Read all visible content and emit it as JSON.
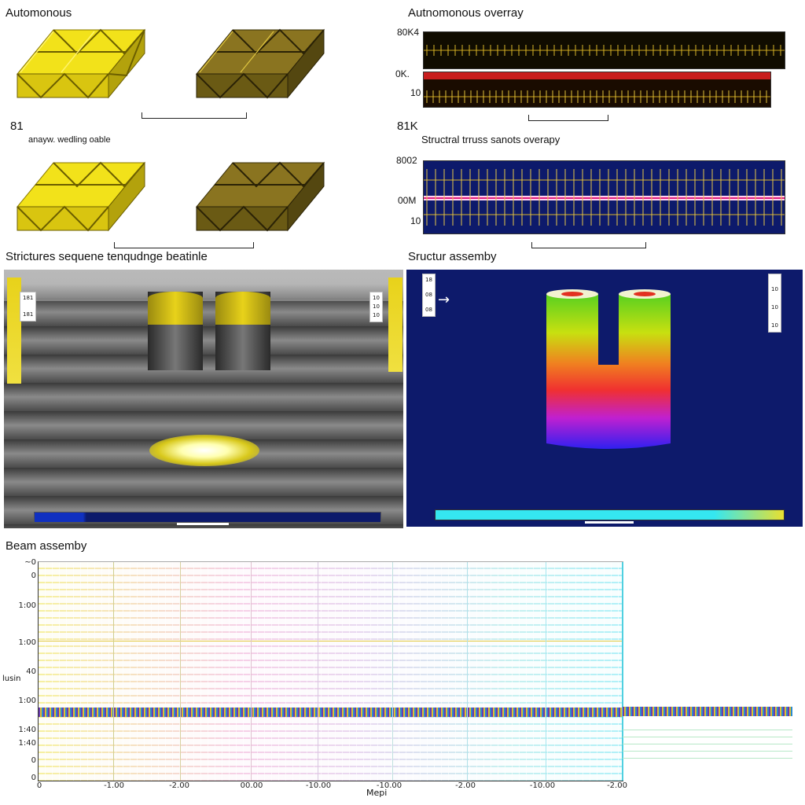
{
  "top_left": {
    "title": "Automonous",
    "side_label": "81",
    "caption": "anayw. wedling oable"
  },
  "top_right": {
    "title": "Autnomonous overray",
    "strip1_labels": [
      "80K4",
      "0K.",
      "10"
    ],
    "section_label": "81K",
    "subtitle": "Structral trruss sanots overapy",
    "strip2_labels": [
      "8002",
      "00M",
      "10"
    ]
  },
  "mid_left": {
    "title": "Strictures sequene tenqudnge beatinle",
    "legend_left": [
      "181",
      "181"
    ],
    "legend_right": [
      "10",
      "10",
      "10"
    ]
  },
  "mid_right": {
    "title": "Sructur assemby",
    "legend_left": [
      "18",
      "08",
      "08"
    ],
    "legend_right": [
      "10",
      "10",
      "10"
    ]
  },
  "chart": {
    "title": "Beam assemby",
    "ylabel": "lusin",
    "xlabel": "Mepi",
    "y_ticks": [
      "~0",
      "0",
      "1:00",
      "1:00",
      "40",
      "1:00",
      "1:40",
      "1:40",
      "0",
      "0"
    ],
    "x_ticks": [
      "0",
      "-1.00",
      "-2.00",
      "00.00",
      "-10.00",
      "-10.00",
      "-2.00",
      "-10.00",
      "-2.00"
    ]
  },
  "colors": {
    "truss_bright": "#f2e21a",
    "truss_dark": "#6a5a14",
    "navy": "#0d1a6b",
    "cyan": "#35e6f0",
    "yellow": "#e8d21a"
  }
}
